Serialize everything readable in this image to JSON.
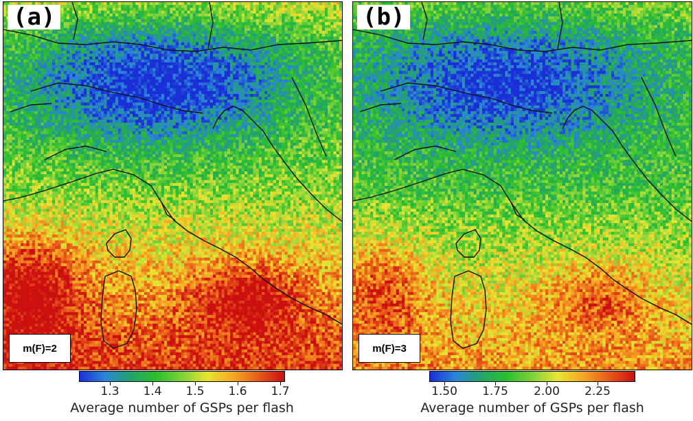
{
  "panels": [
    {
      "id": "a",
      "letter": "(a)",
      "annotation": "m(F)=2",
      "colorbar": {
        "ticks": [
          "1.3",
          "1.4",
          "1.5",
          "1.6",
          "1.7"
        ],
        "label": "Average number of GSPs per flash"
      }
    },
    {
      "id": "b",
      "letter": "(b)",
      "annotation": "m(F)=3",
      "colorbar": {
        "ticks": [
          "1.50",
          "1.75",
          "2.00",
          "2.25"
        ],
        "label": "Average number of GSPs per flash"
      }
    }
  ],
  "colormap": [
    "#1a2fd6",
    "#2a86d8",
    "#24a36a",
    "#2bbf2e",
    "#7ed23a",
    "#e9e532",
    "#f5a623",
    "#e85a1a",
    "#cc1010"
  ]
}
